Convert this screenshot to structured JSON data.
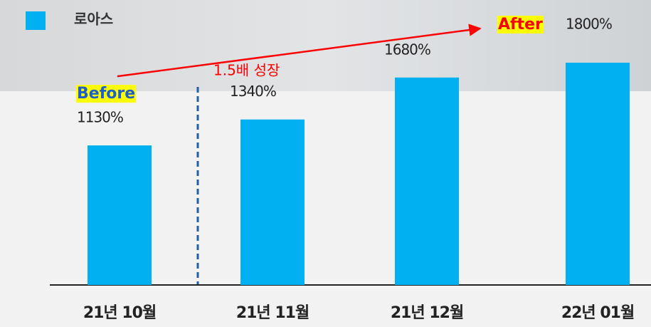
{
  "chart_data": {
    "type": "bar",
    "legend": "로아스",
    "color": "#00b0f0",
    "categories": [
      "21년 10월",
      "21년 11월",
      "21년 12월",
      "22년 01월"
    ],
    "values": [
      1130,
      1340,
      1680,
      1800
    ],
    "value_labels": [
      "1130%",
      "1340%",
      "1680%",
      "1800%"
    ],
    "annotations": {
      "before": "Before",
      "after": "After",
      "growth": "1.5배 성장"
    }
  }
}
